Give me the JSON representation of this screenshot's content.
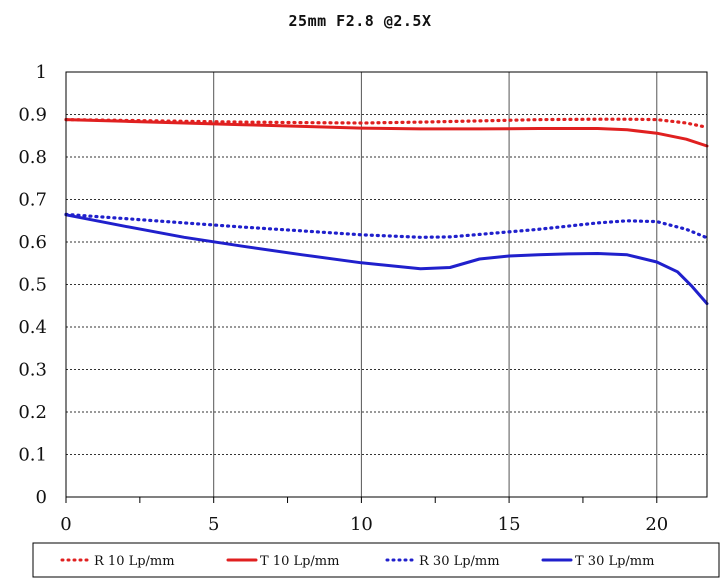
{
  "chart_data": {
    "type": "line",
    "title": "25mm F2.8  @2.5X",
    "xlabel": "",
    "ylabel": "",
    "xlim": [
      0,
      21.7
    ],
    "ylim": [
      0,
      1
    ],
    "x_ticks": [
      0,
      5,
      10,
      15,
      20
    ],
    "y_ticks": [
      0,
      0.1,
      0.2,
      0.3,
      0.4,
      0.5,
      0.6,
      0.7,
      0.8,
      0.9,
      1
    ],
    "x_tick_labels": [
      "0",
      "5",
      "10",
      "15",
      "20"
    ],
    "y_tick_labels": [
      "0",
      "0.1",
      "0.2",
      "0.3",
      "0.4",
      "0.5",
      "0.6",
      "0.7",
      "0.8",
      "0.9",
      "1"
    ],
    "grid": "horizontal dotted, vertical solid",
    "legend_position": "bottom",
    "series": [
      {
        "name": "R 10 Lp/mm",
        "color": "#e02020",
        "style": "dotted",
        "x": [
          0,
          2,
          4,
          6,
          8,
          10,
          12,
          14,
          16,
          18,
          19,
          20,
          21,
          21.7
        ],
        "y": [
          0.888,
          0.886,
          0.884,
          0.882,
          0.881,
          0.88,
          0.882,
          0.885,
          0.888,
          0.889,
          0.889,
          0.888,
          0.88,
          0.87
        ]
      },
      {
        "name": "T 10 Lp/mm",
        "color": "#e02020",
        "style": "solid",
        "x": [
          0,
          2,
          4,
          6,
          8,
          10,
          12,
          14,
          16,
          18,
          19,
          20,
          21,
          21.7
        ],
        "y": [
          0.888,
          0.884,
          0.88,
          0.876,
          0.872,
          0.868,
          0.866,
          0.866,
          0.867,
          0.867,
          0.864,
          0.856,
          0.842,
          0.826
        ]
      },
      {
        "name": "R 30 Lp/mm",
        "color": "#2020cc",
        "style": "dotted",
        "x": [
          0,
          2,
          4,
          6,
          8,
          10,
          12,
          13,
          14,
          16,
          18,
          19,
          20,
          21,
          21.7
        ],
        "y": [
          0.665,
          0.655,
          0.645,
          0.635,
          0.626,
          0.617,
          0.611,
          0.612,
          0.618,
          0.63,
          0.645,
          0.65,
          0.648,
          0.63,
          0.61
        ]
      },
      {
        "name": "T 30 Lp/mm",
        "color": "#2020cc",
        "style": "solid",
        "x": [
          0,
          2,
          4,
          6,
          8,
          10,
          12,
          13,
          14,
          15,
          16,
          17,
          18,
          19,
          20,
          20.7,
          21.2,
          21.7
        ],
        "y": [
          0.664,
          0.637,
          0.611,
          0.59,
          0.57,
          0.551,
          0.537,
          0.54,
          0.56,
          0.567,
          0.57,
          0.572,
          0.573,
          0.57,
          0.553,
          0.53,
          0.495,
          0.455
        ]
      }
    ]
  }
}
